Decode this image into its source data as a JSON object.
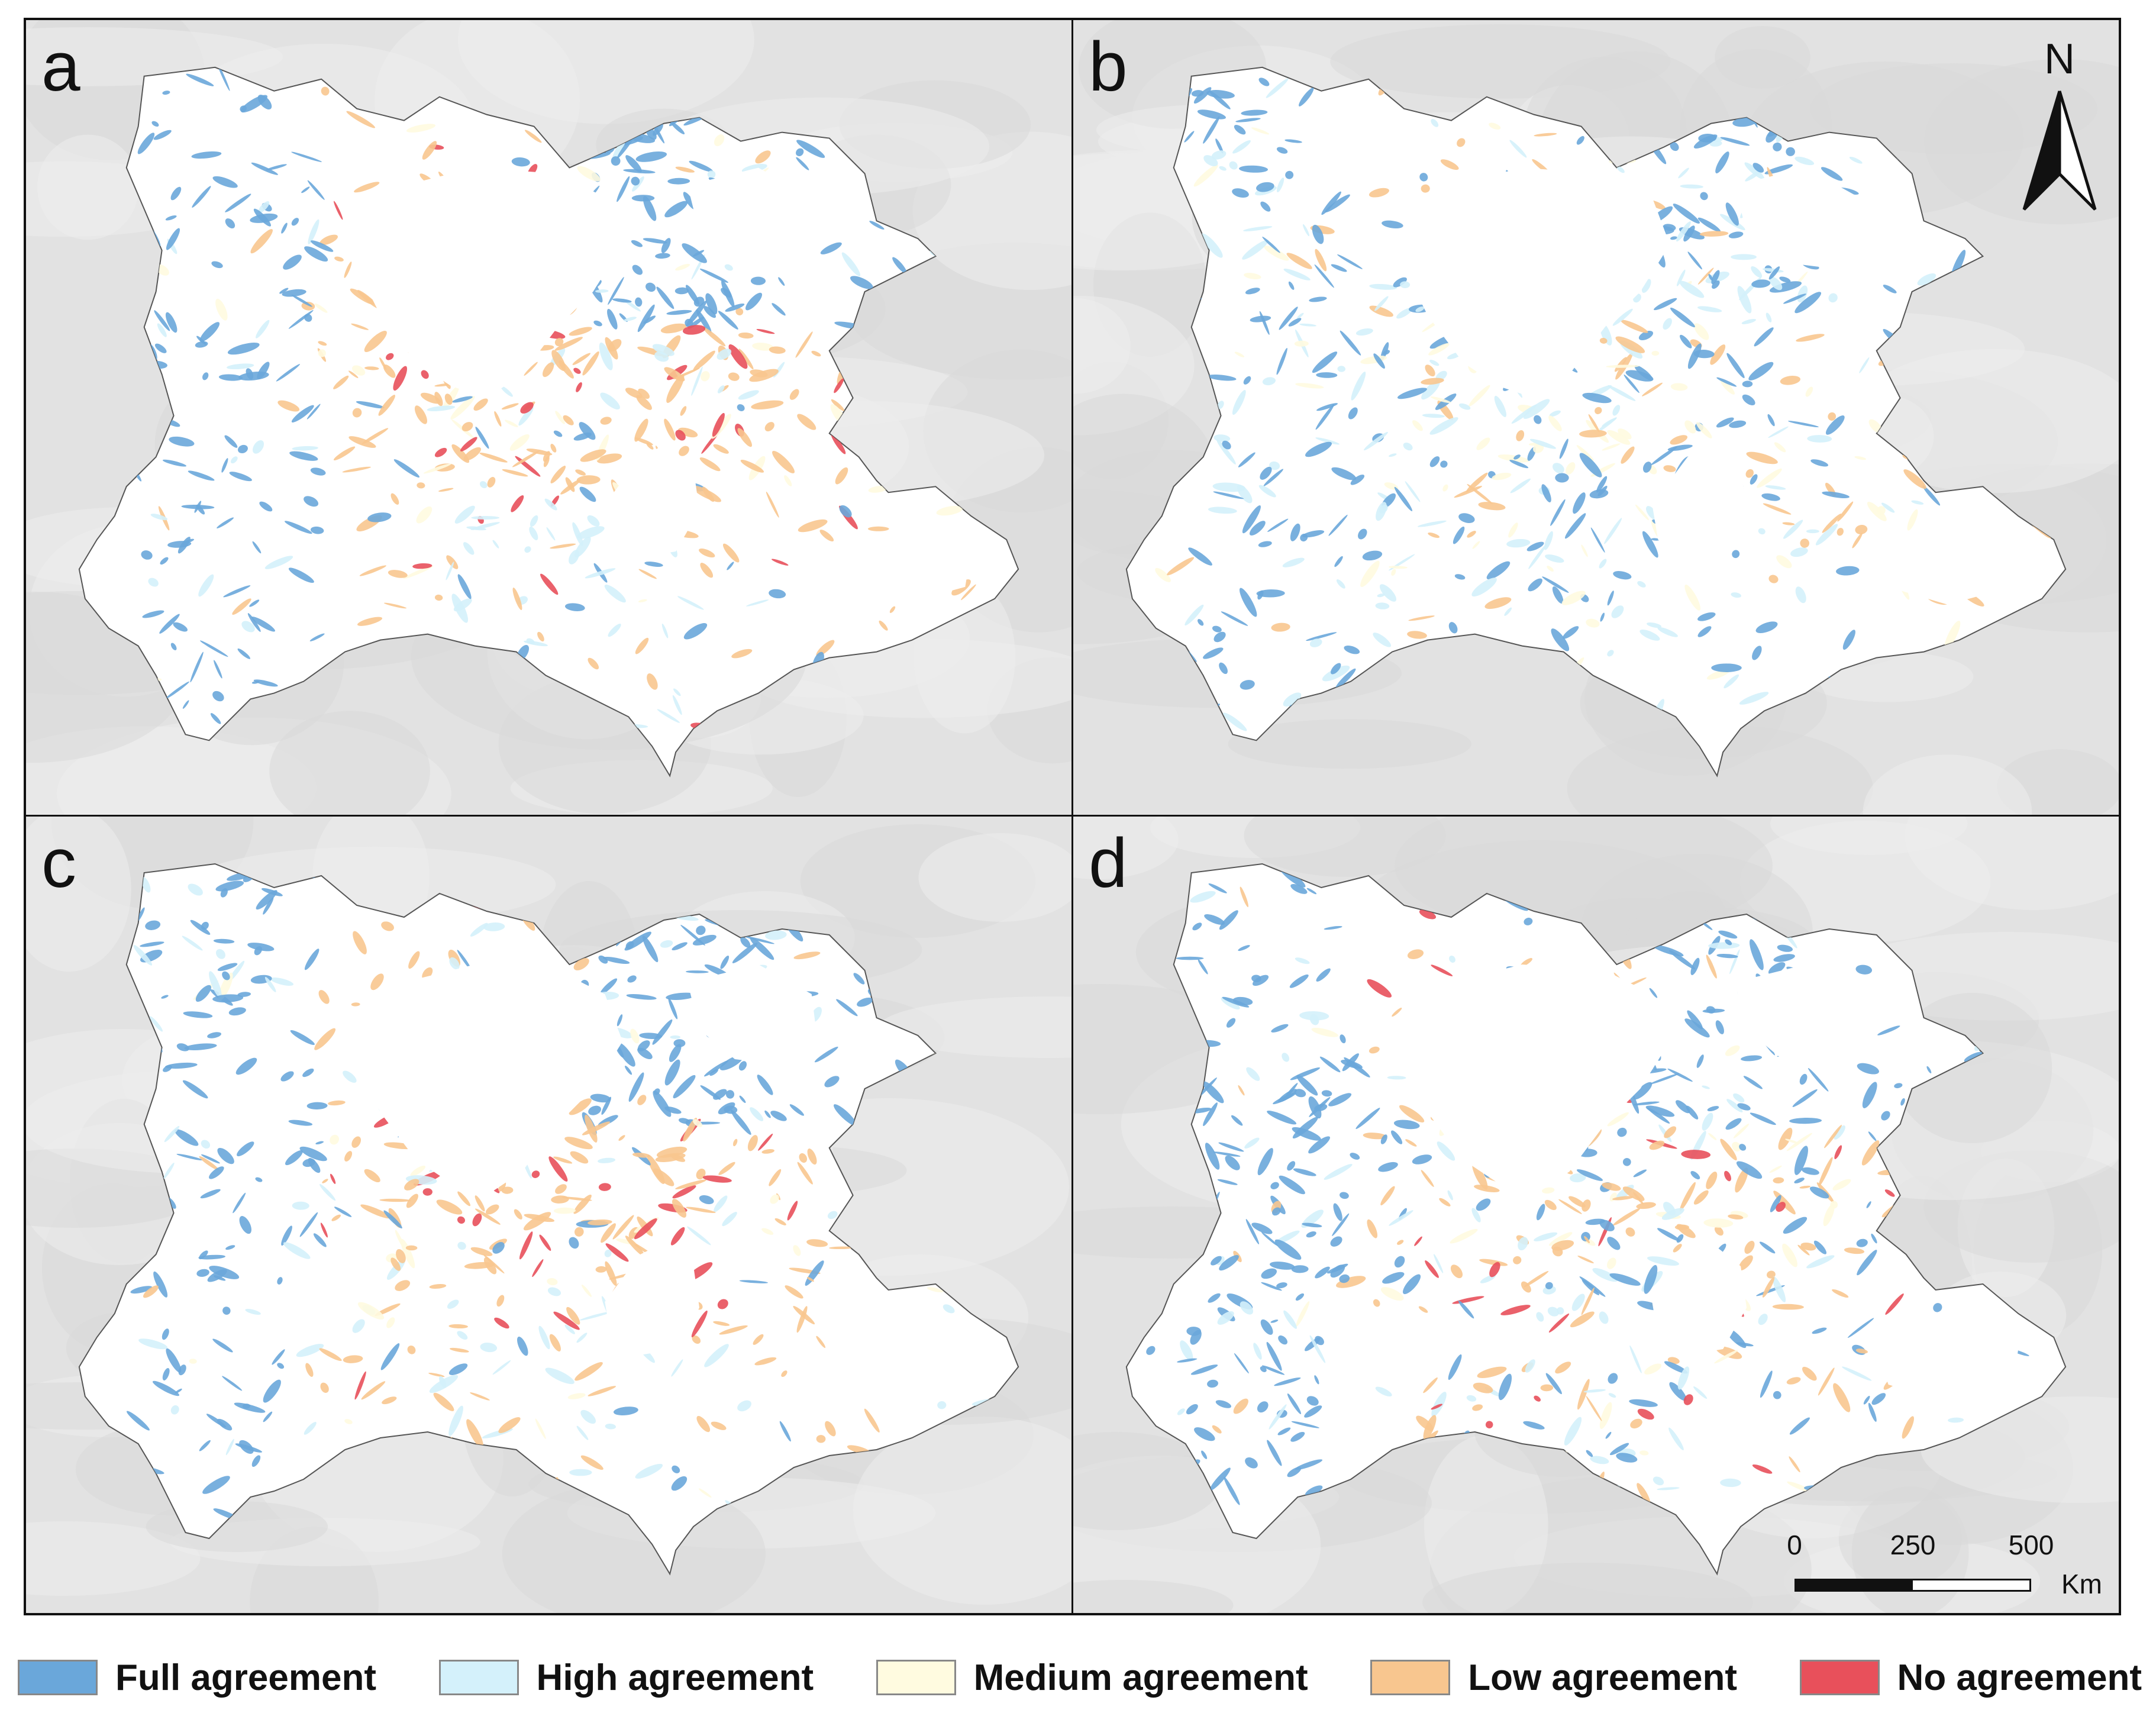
{
  "panels": [
    {
      "label": "a",
      "pattern": "red"
    },
    {
      "label": "b",
      "pattern": "pale"
    },
    {
      "label": "c",
      "pattern": "red"
    },
    {
      "label": "d",
      "pattern": "mixed"
    }
  ],
  "north_arrow": {
    "letter": "N"
  },
  "scale_bar": {
    "ticks": [
      "0",
      "250",
      "500"
    ],
    "unit": "Km"
  },
  "legend": [
    {
      "label": "Full agreement",
      "color": "#6aa7da"
    },
    {
      "label": "High agreement",
      "color": "#d4f1fb"
    },
    {
      "label": "Medium agreement",
      "color": "#fffbe0"
    },
    {
      "label": "Low agreement",
      "color": "#f8c68f"
    },
    {
      "label": "No agreement",
      "color": "#e8505b"
    }
  ]
}
